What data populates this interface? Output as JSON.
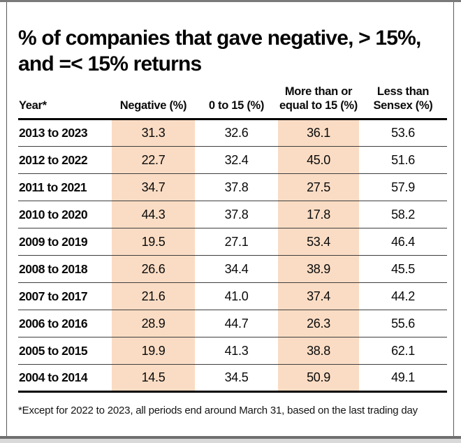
{
  "title": {
    "line1": "% of companies that gave negative, > 15%,",
    "line2": "and =< 15% returns"
  },
  "colors": {
    "highlight": "#fadcc4",
    "rule_dark": "#000000",
    "row_rule": "#3e3e3e"
  },
  "footnote": "*Except for 2022 to 2023, all periods end around March 31, based on the last trading day",
  "chart_data": {
    "type": "table",
    "title": "% of companies that gave negative, > 15%, and =< 15% returns",
    "columns": [
      {
        "label": "Year*",
        "highlight": false
      },
      {
        "label": "Negative (%)",
        "highlight": true
      },
      {
        "label": "0 to 15 (%)",
        "highlight": false
      },
      {
        "label": "More than or equal to 15 (%)",
        "highlight": true
      },
      {
        "label": "Less than Sensex (%)",
        "highlight": false
      }
    ],
    "rows": [
      [
        "2013 to 2023",
        "31.3",
        "32.6",
        "36.1",
        "53.6"
      ],
      [
        "2012 to 2022",
        "22.7",
        "32.4",
        "45.0",
        "51.6"
      ],
      [
        "2011 to 2021",
        "34.7",
        "37.8",
        "27.5",
        "57.9"
      ],
      [
        "2010 to 2020",
        "44.3",
        "37.8",
        "17.8",
        "58.2"
      ],
      [
        "2009 to 2019",
        "19.5",
        "27.1",
        "53.4",
        "46.4"
      ],
      [
        "2008 to 2018",
        "26.6",
        "34.4",
        "38.9",
        "45.5"
      ],
      [
        "2007 to 2017",
        "21.6",
        "41.0",
        "37.4",
        "44.2"
      ],
      [
        "2006 to 2016",
        "28.9",
        "44.7",
        "26.3",
        "55.6"
      ],
      [
        "2005 to 2015",
        "19.9",
        "41.3",
        "38.8",
        "62.1"
      ],
      [
        "2004 to 2014",
        "14.5",
        "34.5",
        "50.9",
        "49.1"
      ]
    ]
  }
}
